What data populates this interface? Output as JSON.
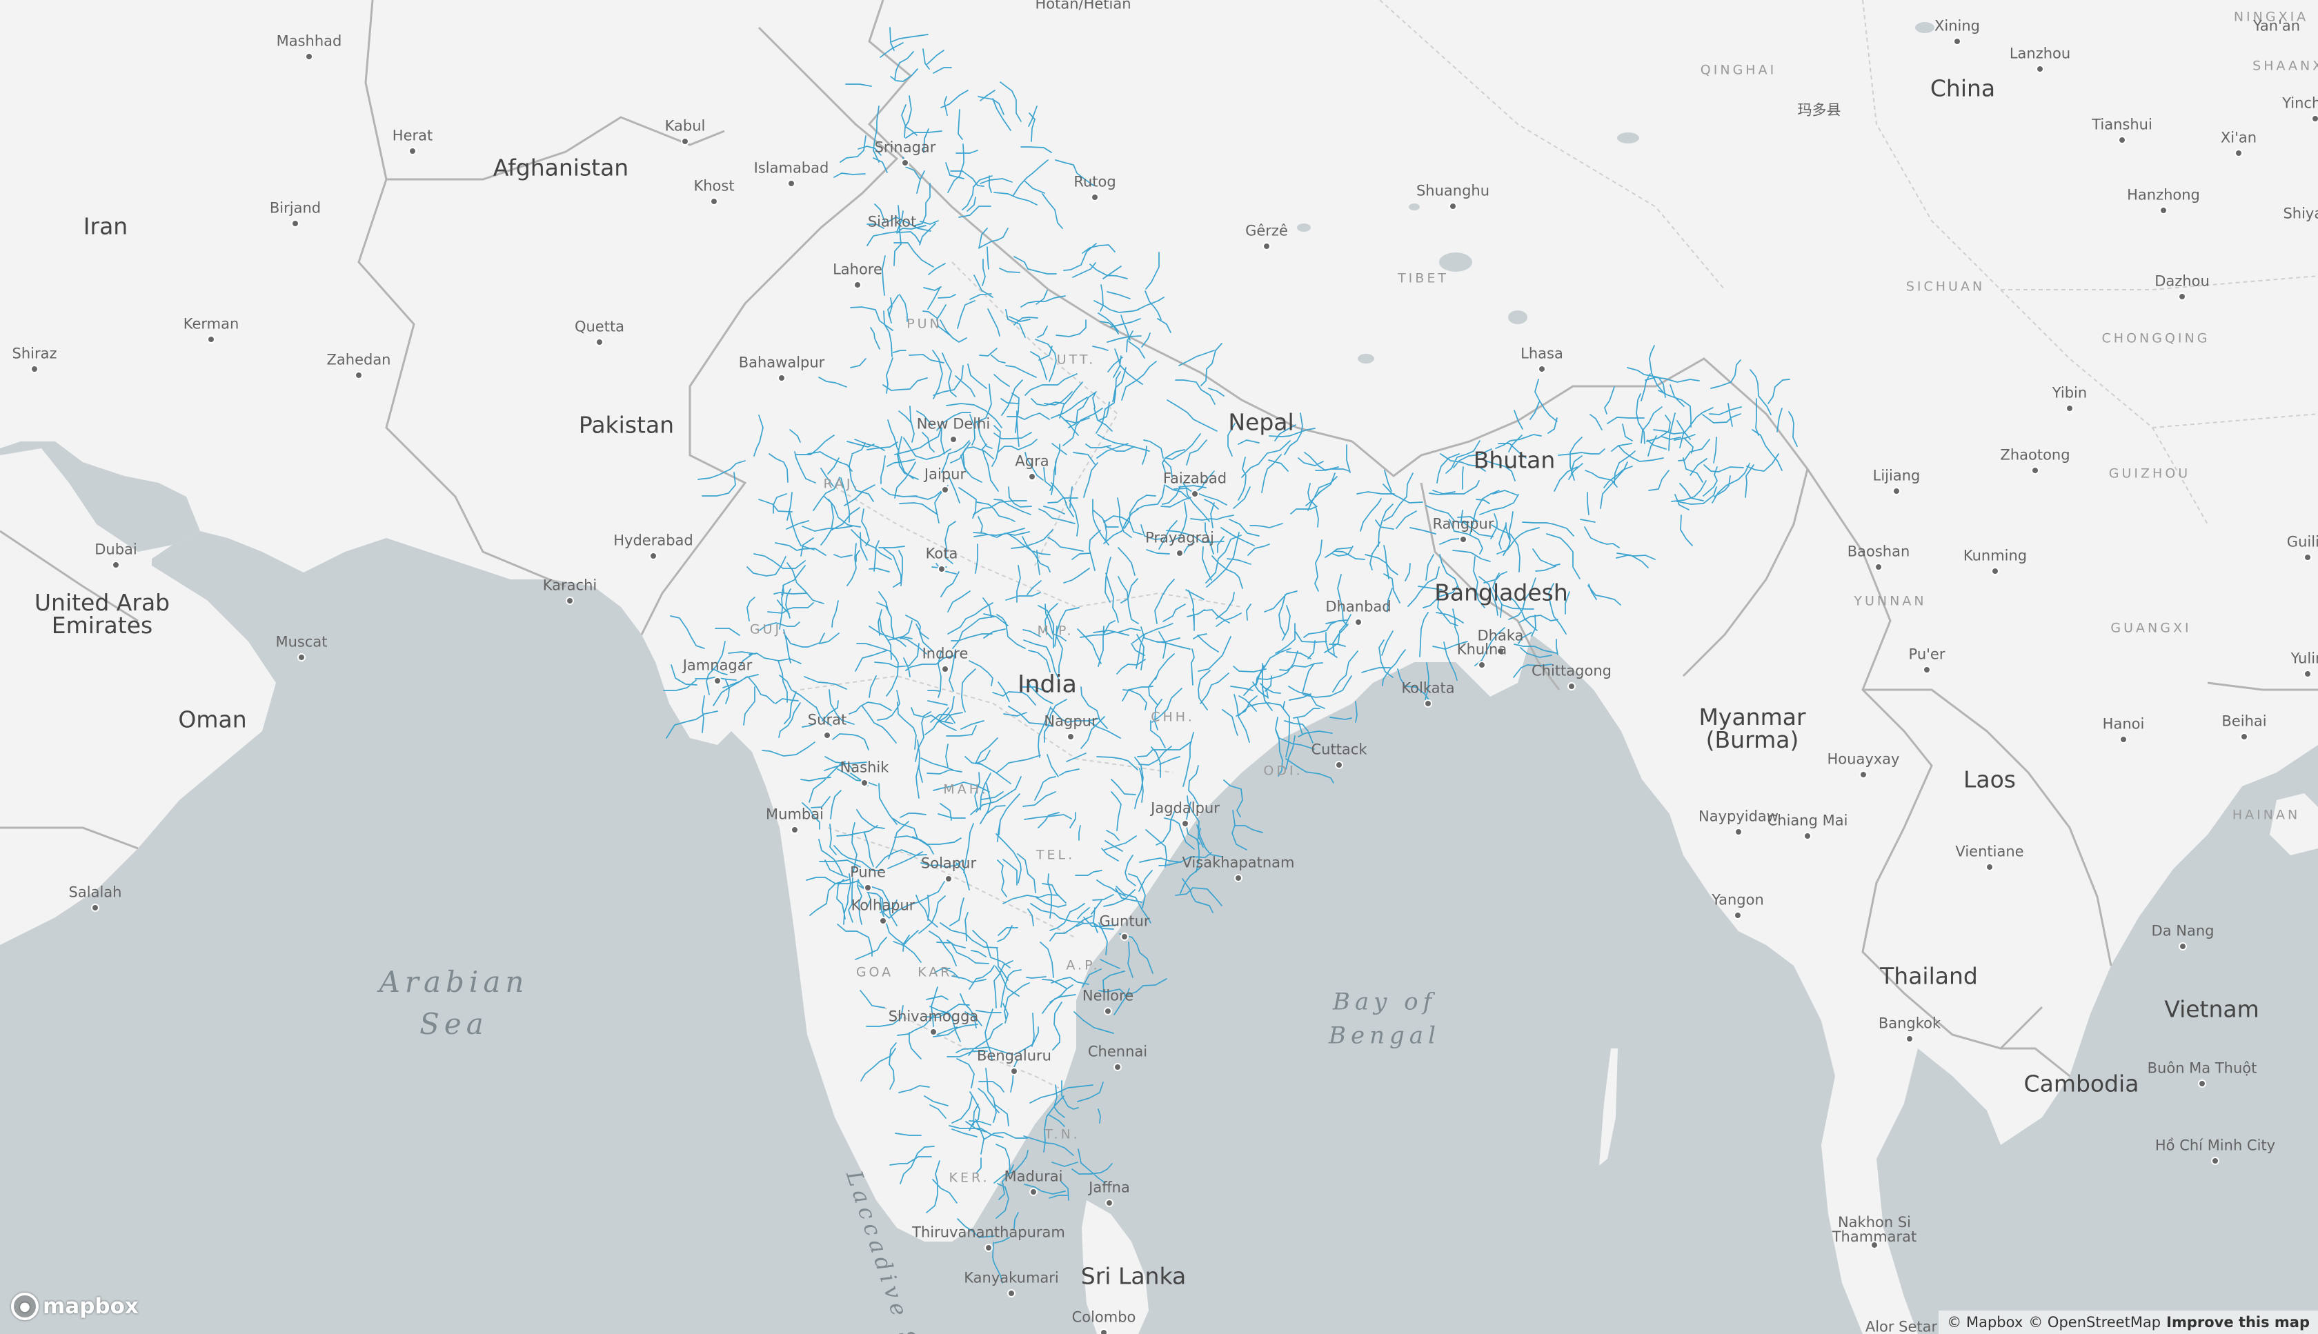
{
  "map": {
    "countries": [
      {
        "name": "Iran"
      },
      {
        "name": "Afghanistan"
      },
      {
        "name": "Pakistan"
      },
      {
        "name": "United Arab\nEmirates"
      },
      {
        "name": "Oman"
      },
      {
        "name": "India"
      },
      {
        "name": "Nepal"
      },
      {
        "name": "Bhutan"
      },
      {
        "name": "Bangladesh"
      },
      {
        "name": "Myanmar\n(Burma)"
      },
      {
        "name": "China"
      },
      {
        "name": "Laos"
      },
      {
        "name": "Thailand"
      },
      {
        "name": "Vietnam"
      },
      {
        "name": "Cambodia"
      },
      {
        "name": "Sri Lanka"
      }
    ],
    "seas": [
      {
        "name": "Arabian\nSea"
      },
      {
        "name": "Bay of\nBengal"
      },
      {
        "name": "Laccadive Se"
      }
    ],
    "regions": [
      "QINGHAI",
      "TIBET",
      "SICHUAN",
      "CHONGQING",
      "GUIZHOU",
      "YUNNAN",
      "GUANGXI",
      "HAINAN",
      "NINGXIA",
      "SHAANXI",
      "RAJ.",
      "GUJ.",
      "M.P.",
      "MAH.",
      "TEL.",
      "KAR.",
      "T.N.",
      "A.P.",
      "ODI.",
      "PUN.",
      "UTT.",
      "CHH.",
      "GOA",
      "KER."
    ],
    "cities": [
      "Mashhad",
      "Herat",
      "Kabul",
      "Islamabad",
      "Khost",
      "Birjand",
      "Kerman",
      "Shiraz",
      "Zahedan",
      "Quetta",
      "Bahawalpur",
      "Lahore",
      "Srinagar",
      "Sialkot",
      "Rutog",
      "Hotan/Hetian",
      "Dubai",
      "Muscat",
      "Salalah",
      "Karachi",
      "Hyderabad",
      "Jamnagar",
      "Surat",
      "Mumbai",
      "Pune",
      "Nashik",
      "Solapur",
      "Kolhapur",
      "Shivamogga",
      "Bengaluru",
      "Chennai",
      "Nellore",
      "Guntur",
      "Visakhapatnam",
      "Jagdalpur",
      "Nagpur",
      "Indore",
      "Kota",
      "Jaipur",
      "New Delhi",
      "Agra",
      "Faizabad",
      "Prayagraj",
      "Dhanbad",
      "Kolkata",
      "Cuttack",
      "Rangpur",
      "Dhaka",
      "Khulna",
      "Chittagong",
      "Madurai",
      "Thiruvananthapuram",
      "Kanyakumari",
      "Jaffna",
      "Colombo",
      "Shuanghu",
      "Gêrzê",
      "Lhasa",
      "玛多县",
      "Xining",
      "Lanzhou",
      "Tianshui",
      "Xi'an",
      "Hanzhong",
      "Dazhou",
      "Yibin",
      "Zhaotong",
      "Lijiang",
      "Kunming",
      "Baoshan",
      "Pu'er",
      "Yulin",
      "Guilin",
      "Beihai",
      "Hanoi",
      "Houayxay",
      "Naypyidaw",
      "Chiang Mai",
      "Vientiane",
      "Yangon",
      "Bangkok",
      "Da Nang",
      "Buôn Ma Thuột",
      "Hồ Chí Minh City",
      "Nakhon Si\nThammarat",
      "Alor Setar",
      "Yan'an",
      "Yinchuan",
      "Shiyan"
    ]
  },
  "logo": {
    "text": "mapbox"
  },
  "attribution": {
    "mapbox": "© Mapbox",
    "osm": "© OpenStreetMap",
    "improve": "Improve this map"
  },
  "colors": {
    "land": "#f3f3f3",
    "water": "#c9d0d3",
    "rivers": "#3aa3cf",
    "borders": "#b3b3b3"
  }
}
